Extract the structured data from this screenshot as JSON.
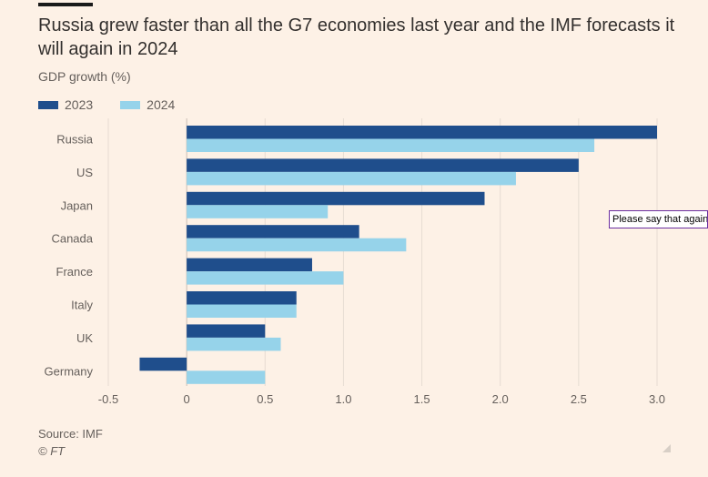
{
  "title": "Russia grew faster than all the G7 economies last year and the IMF forecasts it will again in 2024",
  "subtitle": "GDP growth (%)",
  "source": "Source: IMF",
  "copyright": "© FT",
  "tooltip": "Please say that again",
  "colors": {
    "s2023": "#1f4e8c",
    "s2024": "#96d3ea",
    "grid": "#e6dcd2",
    "zero": "#c9beb4"
  },
  "chart_data": {
    "type": "bar",
    "orientation": "horizontal",
    "categories": [
      "Russia",
      "US",
      "Japan",
      "Canada",
      "France",
      "Italy",
      "UK",
      "Germany"
    ],
    "series": [
      {
        "name": "2023",
        "values": [
          3.0,
          2.5,
          1.9,
          1.1,
          0.8,
          0.7,
          0.5,
          -0.3
        ]
      },
      {
        "name": "2024",
        "values": [
          2.6,
          2.1,
          0.9,
          1.4,
          1.0,
          0.7,
          0.6,
          0.5
        ]
      }
    ],
    "xlim": [
      -0.5,
      3.0
    ],
    "xticks": [
      "-0.5",
      "0",
      "0.5",
      "1.0",
      "1.5",
      "2.0",
      "2.5",
      "3.0"
    ],
    "xtick_values": [
      -0.5,
      0,
      0.5,
      1.0,
      1.5,
      2.0,
      2.5,
      3.0
    ],
    "grid": true,
    "legend": "top-left"
  }
}
